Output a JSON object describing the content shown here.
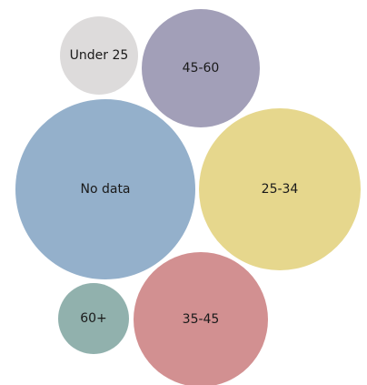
{
  "chart_data": {
    "type": "bubble",
    "title": "",
    "series": [
      {
        "category": "No data",
        "color": "#94b0cb"
      },
      {
        "category": "25-34",
        "color": "#e6d78d"
      },
      {
        "category": "35-45",
        "color": "#d29091"
      },
      {
        "category": "45-60",
        "color": "#a29fb8"
      },
      {
        "category": "60+",
        "color": "#91b1ad"
      },
      {
        "category": "Under 25",
        "color": "#dddbdb"
      }
    ]
  }
}
